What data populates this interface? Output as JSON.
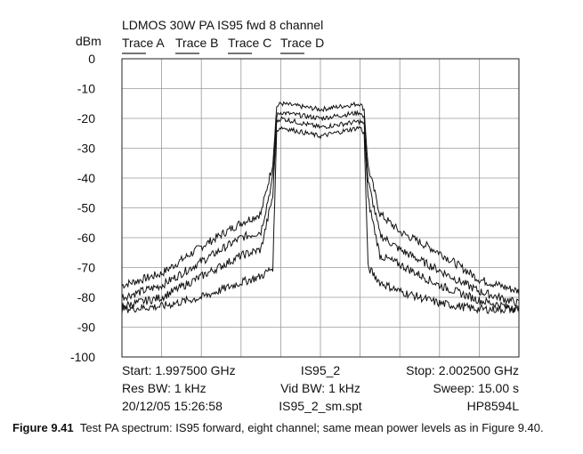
{
  "chart_data": {
    "type": "line",
    "title": "LDMOS 30W PA IS95 fwd 8 channel",
    "ylabel": "dBm",
    "ylim": [
      -100,
      0
    ],
    "xlim": [
      1.9975,
      2.0025
    ],
    "x_unit": "GHz",
    "yticks": [
      "0",
      "-10",
      "-20",
      "-30",
      "-40",
      "-50",
      "-60",
      "-70",
      "-80",
      "-90",
      "-100"
    ],
    "grid": true,
    "legend": [
      "Trace A",
      "Trace B",
      "Trace C",
      "Trace D"
    ],
    "x": [
      1.9975,
      1.998,
      1.9985,
      1.999,
      1.99925,
      1.9994,
      1.99945,
      1.9995,
      2.0,
      2.0005,
      2.00055,
      2.0006,
      2.00075,
      2.001,
      2.0015,
      2.002,
      2.0025
    ],
    "series": [
      {
        "name": "Trace A",
        "values": [
          -76,
          -72,
          -63,
          -55,
          -52,
          -35,
          -16,
          -15,
          -17,
          -15,
          -17,
          -36,
          -52,
          -58,
          -65,
          -74,
          -78
        ]
      },
      {
        "name": "Trace B",
        "values": [
          -80,
          -76,
          -68,
          -60,
          -58,
          -40,
          -19,
          -18,
          -20,
          -18,
          -20,
          -41,
          -59,
          -64,
          -71,
          -78,
          -82
        ]
      },
      {
        "name": "Trace C",
        "values": [
          -83,
          -80,
          -73,
          -66,
          -64,
          -46,
          -21,
          -20,
          -23,
          -21,
          -22,
          -47,
          -66,
          -69,
          -76,
          -81,
          -84
        ]
      },
      {
        "name": "Trace D",
        "values": [
          -84,
          -83,
          -80,
          -75,
          -73,
          -70,
          -24,
          -23,
          -26,
          -23,
          -25,
          -70,
          -75,
          -78,
          -82,
          -84,
          -84
        ]
      }
    ],
    "annotations": {
      "start": "Start: 1.997500 GHz",
      "center": "IS95_2",
      "stop": "Stop: 2.002500 GHz",
      "res_bw": "Res BW: 1 kHz",
      "vid_bw": "Vid BW: 1 kHz",
      "sweep": "Sweep: 15.00 s",
      "date": "20/12/05 15:26:58",
      "file": "IS95_2_sm.spt",
      "instrument": "HP8594L"
    }
  },
  "caption": {
    "label": "Figure 9.41",
    "text": "Test PA spectrum: IS95 forward, eight channel; same mean power levels as in Figure 9.40."
  }
}
